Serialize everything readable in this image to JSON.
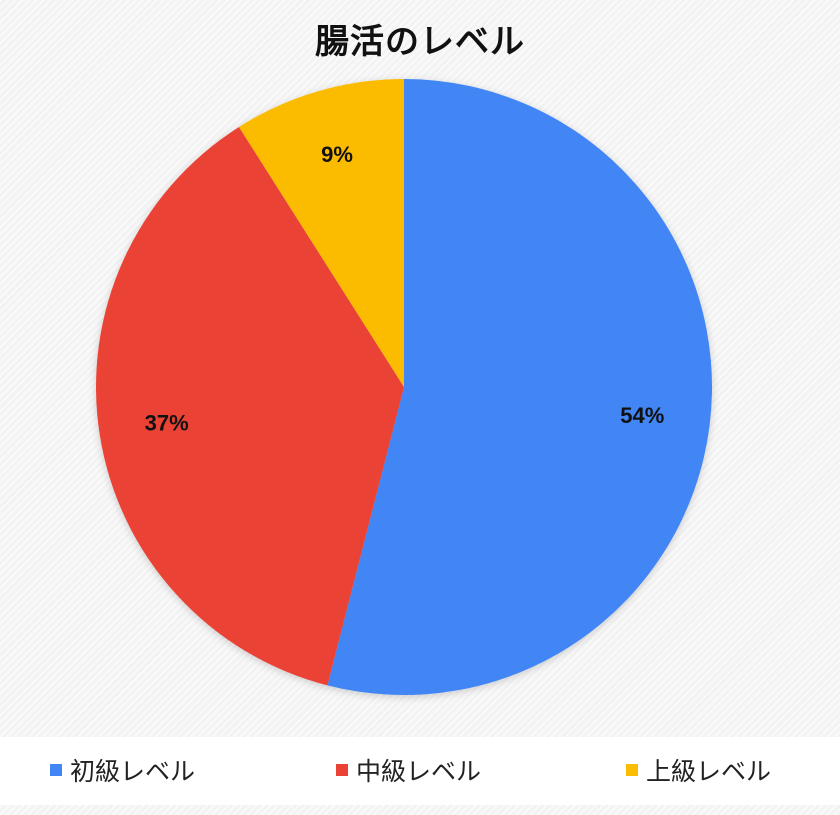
{
  "chart_data": {
    "type": "pie",
    "title": "腸活のレベル",
    "slices": [
      {
        "label": "初級レベル",
        "value": 54,
        "display": "54%",
        "color": "#4285f4"
      },
      {
        "label": "中級レベル",
        "value": 37,
        "display": "37%",
        "color": "#ea4335"
      },
      {
        "label": "上級レベル",
        "value": 9,
        "display": "9%",
        "color": "#fbbc04"
      }
    ],
    "legend_position": "bottom",
    "start_angle": "top",
    "direction": "clockwise"
  }
}
